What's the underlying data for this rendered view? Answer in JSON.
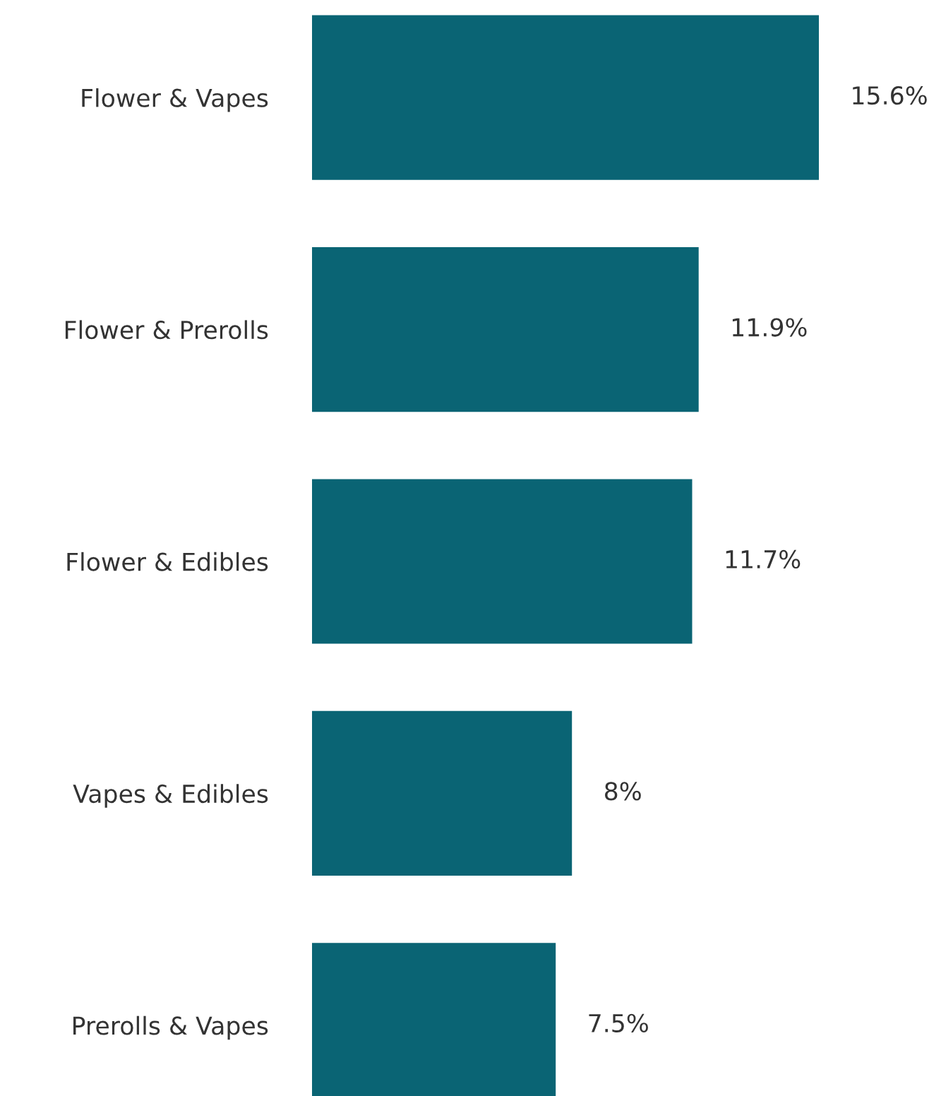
{
  "chart_data": {
    "type": "bar",
    "orientation": "horizontal",
    "categories": [
      "Flower & Vapes",
      "Flower & Prerolls",
      "Flower & Edibles",
      "Vapes & Edibles",
      "Prerolls & Vapes"
    ],
    "values": [
      15.6,
      11.9,
      11.7,
      8,
      7.5
    ],
    "value_labels": [
      "15.6%",
      "11.9%",
      "11.7%",
      "8%",
      "7.5%"
    ],
    "color": "#0a6474",
    "grid": false,
    "legend": false
  }
}
